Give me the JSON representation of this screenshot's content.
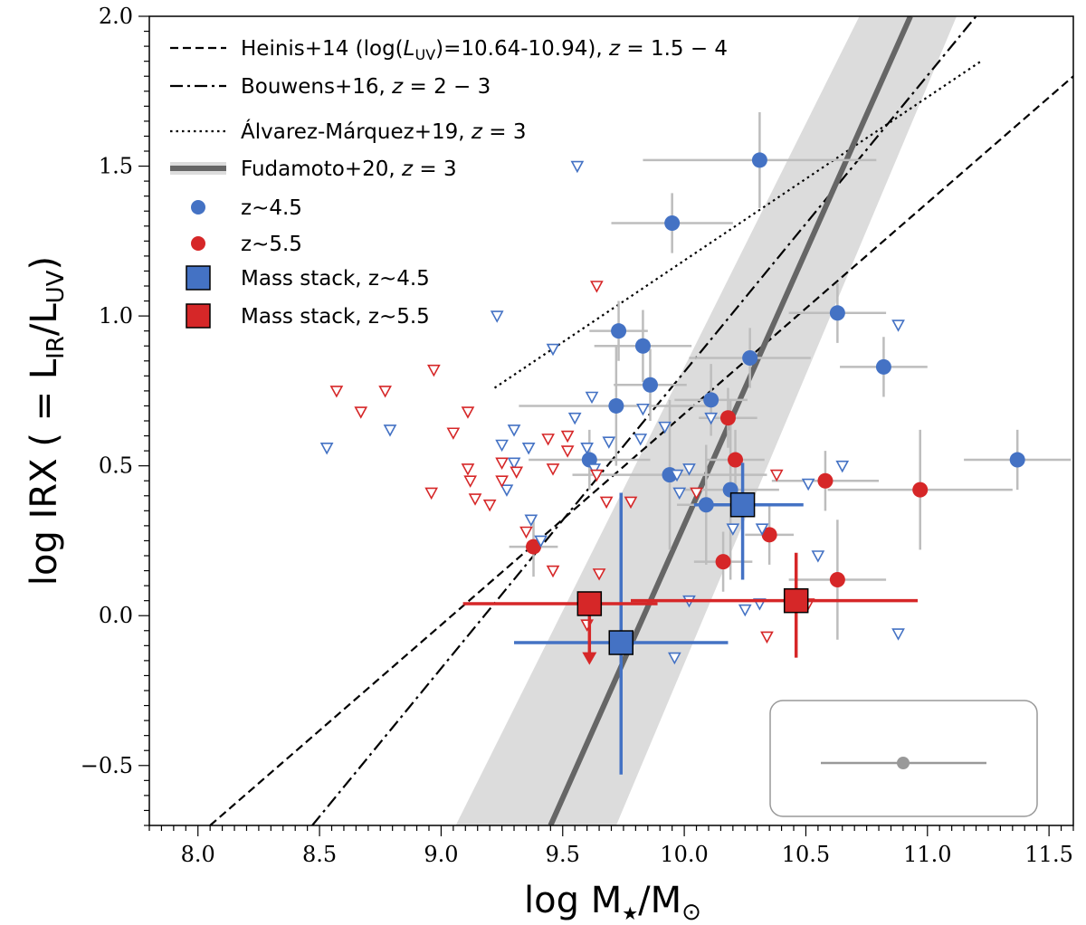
{
  "chart_data": {
    "type": "scatter",
    "title": "",
    "xlabel": "log M★/M⊙",
    "ylabel": "log IRX ( = L_IR/L_UV)",
    "xlabel_parts": {
      "main": "log M",
      "star": "★",
      "sep": "/M",
      "sun": "⊙"
    },
    "ylabel_parts": {
      "main": "log IRX ( = L",
      "sub1": "IR",
      "mid": "/L",
      "sub2": "UV",
      "end": ")"
    },
    "xlim": [
      7.8,
      11.6
    ],
    "ylim": [
      -0.7,
      2.0
    ],
    "x_ticks": [
      8.0,
      8.5,
      9.0,
      9.5,
      10.0,
      10.5,
      11.0,
      11.5
    ],
    "x_tick_labels": [
      "8.0",
      "8.5",
      "9.0",
      "9.5",
      "10.0",
      "10.5",
      "11.0",
      "11.5"
    ],
    "y_ticks": [
      -0.5,
      0.0,
      0.5,
      1.0,
      1.5,
      2.0
    ],
    "y_tick_labels": [
      "−0.5",
      "0.0",
      "0.5",
      "1.0",
      "1.5",
      "2.0"
    ],
    "grid": false,
    "colors": {
      "blue": "#4472c4",
      "red": "#d62728",
      "error_gray": "#bdbdbd",
      "band": "#d9d9d9",
      "fudamoto": "#666666"
    },
    "lines": [
      {
        "name": "Heinis+14",
        "style": "dashed",
        "x": [
          8.05,
          11.6
        ],
        "y": [
          -0.7,
          1.8
        ]
      },
      {
        "name": "Bouwens+16",
        "style": "dashdot",
        "x": [
          8.47,
          11.2
        ],
        "y": [
          -0.7,
          2.0
        ]
      },
      {
        "name": "Álvarez-Márquez+19",
        "style": "dotted",
        "x": [
          9.22,
          11.22
        ],
        "y": [
          0.76,
          1.85
        ]
      },
      {
        "name": "Fudamoto+20",
        "style": "thick",
        "x": [
          9.45,
          10.93
        ],
        "y": [
          -0.7,
          2.0
        ]
      }
    ],
    "fudamoto_band": {
      "x_low": [
        9.06,
        10.72
      ],
      "x_high": [
        9.72,
        11.12
      ],
      "y": [
        -0.7,
        2.0
      ]
    },
    "legend": [
      {
        "label": "Heinis+14 (log(L_UV)=10.64-10.94), z = 1.5 − 4",
        "parts": [
          "Heinis+14 (log(",
          "L",
          "UV",
          ")=10.64-10.94), ",
          "z",
          " = 1.5 − 4"
        ]
      },
      {
        "label": "Bouwens+16, z = 2 − 3",
        "parts": [
          "Bouwens+16, ",
          "z",
          " = 2 − 3"
        ]
      },
      {
        "label": "Álvarez-Márquez+19, z = 3",
        "parts": [
          "Álvarez-Márquez+19, ",
          "z",
          " = 3"
        ]
      },
      {
        "label": "Fudamoto+20, z = 3",
        "parts": [
          "Fudamoto+20, ",
          "z",
          " = 3"
        ]
      },
      {
        "label": "z~4.5"
      },
      {
        "label": "z~5.5"
      },
      {
        "label": "Mass stack, z~4.5"
      },
      {
        "label": "Mass stack, z~5.5"
      }
    ],
    "series": [
      {
        "name": "z~4.5 detections",
        "marker": "circle",
        "color": "blue",
        "points": [
          [
            10.31,
            1.52,
            0.48,
            0.16
          ],
          [
            9.95,
            1.31,
            0.25,
            0.1
          ],
          [
            10.63,
            1.01,
            0.2,
            0.1
          ],
          [
            9.73,
            0.95,
            0.12,
            0.1
          ],
          [
            9.83,
            0.9,
            0.2,
            0.12
          ],
          [
            10.82,
            0.83,
            0.18,
            0.1
          ],
          [
            10.27,
            0.86,
            0.25,
            0.1
          ],
          [
            9.86,
            0.77,
            0.15,
            0.12
          ],
          [
            10.11,
            0.72,
            0.15,
            0.12
          ],
          [
            9.72,
            0.7,
            0.4,
            0.2
          ],
          [
            9.61,
            0.52,
            0.25,
            0.1
          ],
          [
            9.94,
            0.47,
            0.4,
            0.25
          ],
          [
            10.09,
            0.37,
            0.12,
            0.2
          ],
          [
            10.19,
            0.42,
            0.2,
            0.3
          ],
          [
            11.37,
            0.52,
            0.22,
            0.1
          ]
        ]
      },
      {
        "name": "z~5.5 detections",
        "marker": "circle",
        "color": "red",
        "points": [
          [
            10.18,
            0.66,
            0.12,
            0.1
          ],
          [
            10.21,
            0.52,
            0.12,
            0.1
          ],
          [
            10.58,
            0.45,
            0.22,
            0.1
          ],
          [
            10.97,
            0.42,
            0.38,
            0.2
          ],
          [
            9.38,
            0.23,
            0.1,
            0.1
          ],
          [
            10.16,
            0.18,
            0.12,
            0.1
          ],
          [
            10.35,
            0.27,
            0.1,
            0.1
          ],
          [
            10.63,
            0.12,
            0.2,
            0.2
          ]
        ]
      },
      {
        "name": "z~4.5 upper limits",
        "marker": "triangle-down",
        "color": "blue",
        "points": [
          [
            8.53,
            0.56
          ],
          [
            8.79,
            0.62
          ],
          [
            9.23,
            1.0
          ],
          [
            9.56,
            1.5
          ],
          [
            9.46,
            0.89
          ],
          [
            9.62,
            0.73
          ],
          [
            9.55,
            0.66
          ],
          [
            9.6,
            0.56
          ],
          [
            9.69,
            0.58
          ],
          [
            9.63,
            0.49
          ],
          [
            9.3,
            0.62
          ],
          [
            9.25,
            0.57
          ],
          [
            9.36,
            0.56
          ],
          [
            9.37,
            0.32
          ],
          [
            9.27,
            0.42
          ],
          [
            9.3,
            0.51
          ],
          [
            9.41,
            0.25
          ],
          [
            9.83,
            0.69
          ],
          [
            9.82,
            0.59
          ],
          [
            9.92,
            0.63
          ],
          [
            9.98,
            0.41
          ],
          [
            10.02,
            0.49
          ],
          [
            10.02,
            0.05
          ],
          [
            9.97,
            0.47
          ],
          [
            10.11,
            0.66
          ],
          [
            9.96,
            -0.14
          ],
          [
            10.2,
            0.29
          ],
          [
            10.32,
            0.29
          ],
          [
            10.31,
            0.04
          ],
          [
            10.44,
            0.06
          ],
          [
            10.51,
            0.44
          ],
          [
            10.55,
            0.2
          ],
          [
            10.65,
            0.5
          ],
          [
            10.88,
            0.97
          ],
          [
            10.88,
            -0.06
          ],
          [
            10.25,
            0.02
          ]
        ]
      },
      {
        "name": "z~5.5 upper limits",
        "marker": "triangle-down",
        "color": "red",
        "points": [
          [
            8.57,
            0.75
          ],
          [
            8.67,
            0.68
          ],
          [
            8.77,
            0.75
          ],
          [
            8.97,
            0.82
          ],
          [
            8.96,
            0.41
          ],
          [
            9.05,
            0.61
          ],
          [
            9.11,
            0.68
          ],
          [
            9.12,
            0.45
          ],
          [
            9.11,
            0.49
          ],
          [
            9.14,
            0.39
          ],
          [
            9.25,
            0.51
          ],
          [
            9.2,
            0.37
          ],
          [
            9.25,
            0.45
          ],
          [
            9.31,
            0.48
          ],
          [
            9.35,
            0.28
          ],
          [
            9.46,
            0.15
          ],
          [
            9.44,
            0.59
          ],
          [
            9.46,
            0.49
          ],
          [
            9.52,
            0.6
          ],
          [
            9.52,
            0.55
          ],
          [
            9.64,
            1.1
          ],
          [
            9.64,
            0.47
          ],
          [
            9.68,
            0.38
          ],
          [
            9.78,
            0.38
          ],
          [
            9.65,
            0.14
          ],
          [
            9.6,
            -0.03
          ],
          [
            10.05,
            0.41
          ],
          [
            10.38,
            0.47
          ],
          [
            10.34,
            -0.07
          ],
          [
            10.51,
            0.04
          ]
        ]
      },
      {
        "name": "Mass stack z~4.5",
        "marker": "square",
        "color": "blue",
        "points": [
          [
            9.74,
            -0.09,
            0.44,
            0.44,
            0.44,
            0.5
          ],
          [
            10.24,
            0.37,
            0.2,
            0.25,
            0.25,
            0.14
          ]
        ]
      },
      {
        "name": "Mass stack z~5.5",
        "marker": "square",
        "color": "red",
        "points": [
          [
            9.61,
            0.04,
            0.52,
            0.28,
            null,
            null
          ],
          [
            10.46,
            0.05,
            0.68,
            0.5,
            0.19,
            0.16
          ]
        ],
        "upper_limit_arrow": [
          9.61
        ]
      }
    ],
    "inset": {
      "marker": "circle",
      "color": "#999999",
      "description": "typical error bar"
    }
  }
}
